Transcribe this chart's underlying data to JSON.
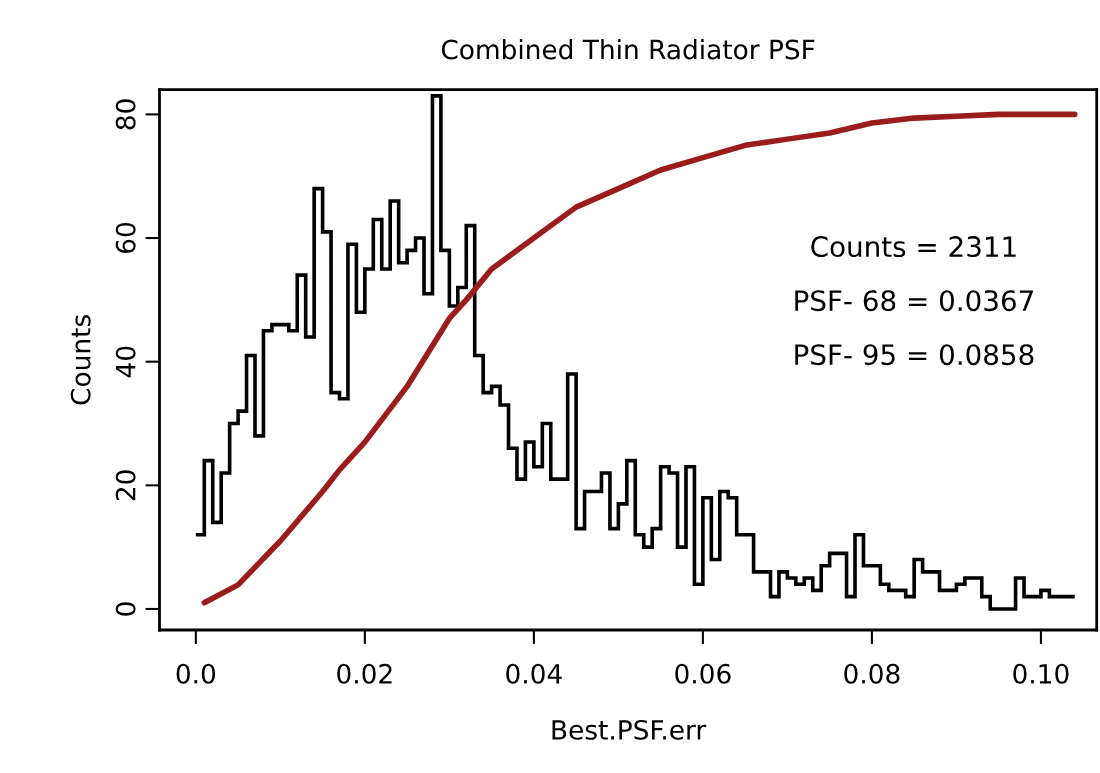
{
  "chart_data": {
    "type": "histogram",
    "title": "Combined Thin Radiator PSF",
    "xlabel": "Best.PSF.err",
    "ylabel": "Counts",
    "bins": [
      0,
      0.001,
      0.002,
      0.003,
      0.004,
      0.005,
      0.006,
      0.007,
      0.008,
      0.009,
      0.01,
      0.011,
      0.012,
      0.013,
      0.014,
      0.015,
      0.016,
      0.017,
      0.018,
      0.019,
      0.02,
      0.021,
      0.022,
      0.023,
      0.024,
      0.025,
      0.026,
      0.027,
      0.028,
      0.029,
      0.03,
      0.031,
      0.032,
      0.033,
      0.034,
      0.035,
      0.036,
      0.037,
      0.038,
      0.039,
      0.04,
      0.041,
      0.042,
      0.043,
      0.044,
      0.045,
      0.046,
      0.047,
      0.048,
      0.049,
      0.05,
      0.051,
      0.052,
      0.053,
      0.054,
      0.055,
      0.056,
      0.057,
      0.058,
      0.059,
      0.06,
      0.061,
      0.062,
      0.063,
      0.064,
      0.065,
      0.066,
      0.067,
      0.068,
      0.069,
      0.07,
      0.071,
      0.072,
      0.073,
      0.074,
      0.075,
      0.076,
      0.077,
      0.078,
      0.079,
      0.08,
      0.081,
      0.082,
      0.083,
      0.084,
      0.085,
      0.086,
      0.087,
      0.088,
      0.089,
      0.09,
      0.091,
      0.092,
      0.093,
      0.094,
      0.095,
      0.096,
      0.097,
      0.098,
      0.099,
      0.1,
      0.101,
      0.102,
      0.103,
      0.104
    ],
    "values": [
      12,
      24,
      14,
      22,
      30,
      32,
      41,
      28,
      45,
      46,
      46,
      45,
      54,
      44,
      68,
      61,
      35,
      34,
      59,
      48,
      55,
      63,
      55,
      66,
      56,
      58,
      60,
      51,
      83,
      58,
      49,
      52,
      62,
      41,
      35,
      36,
      33,
      26,
      21,
      27,
      23,
      30,
      21,
      21,
      38,
      13,
      19,
      19,
      22,
      13,
      17,
      24,
      12,
      10,
      13,
      23,
      22,
      10,
      23,
      4,
      18,
      8,
      19,
      18,
      12,
      12,
      6,
      6,
      2,
      6,
      5,
      4,
      5,
      3,
      7,
      9,
      9,
      2,
      12,
      7,
      7,
      4,
      3,
      3,
      2,
      8,
      6,
      6,
      3,
      3,
      4,
      5,
      5,
      2,
      0,
      0,
      0,
      5,
      2,
      2,
      3,
      2,
      2,
      2
    ],
    "color": "#000000",
    "series": [
      {
        "type": "line",
        "color": "#9b1c1c",
        "x": [
          0.001,
          0.005,
          0.01,
          0.015,
          0.017,
          0.02,
          0.025,
          0.03,
          0.032,
          0.035,
          0.04,
          0.045,
          0.05,
          0.055,
          0.06,
          0.065,
          0.07,
          0.075,
          0.08,
          0.085,
          0.09,
          0.095,
          0.104
        ],
        "values": [
          1,
          3.9,
          11,
          19,
          22.5,
          27,
          36,
          47,
          50,
          55,
          60,
          65,
          68,
          71,
          73,
          75,
          76,
          77,
          78.6,
          79.4,
          79.7,
          80,
          80
        ]
      }
    ],
    "xlim": [
      -0.0043,
      0.1066
    ],
    "ylim": [
      -3.4,
      84
    ],
    "xticks": [
      {
        "value": 0,
        "label": "0.0"
      },
      0.02,
      0.04,
      0.06,
      0.08,
      {
        "value": 0.1,
        "label": "0.10"
      }
    ],
    "yticks": [
      0,
      20,
      40,
      60,
      80
    ],
    "annotations": [
      "Counts = 2311",
      "PSF- 68 = 0.0367",
      "PSF- 95 = 0.0858"
    ],
    "grid": false,
    "legend": false
  }
}
